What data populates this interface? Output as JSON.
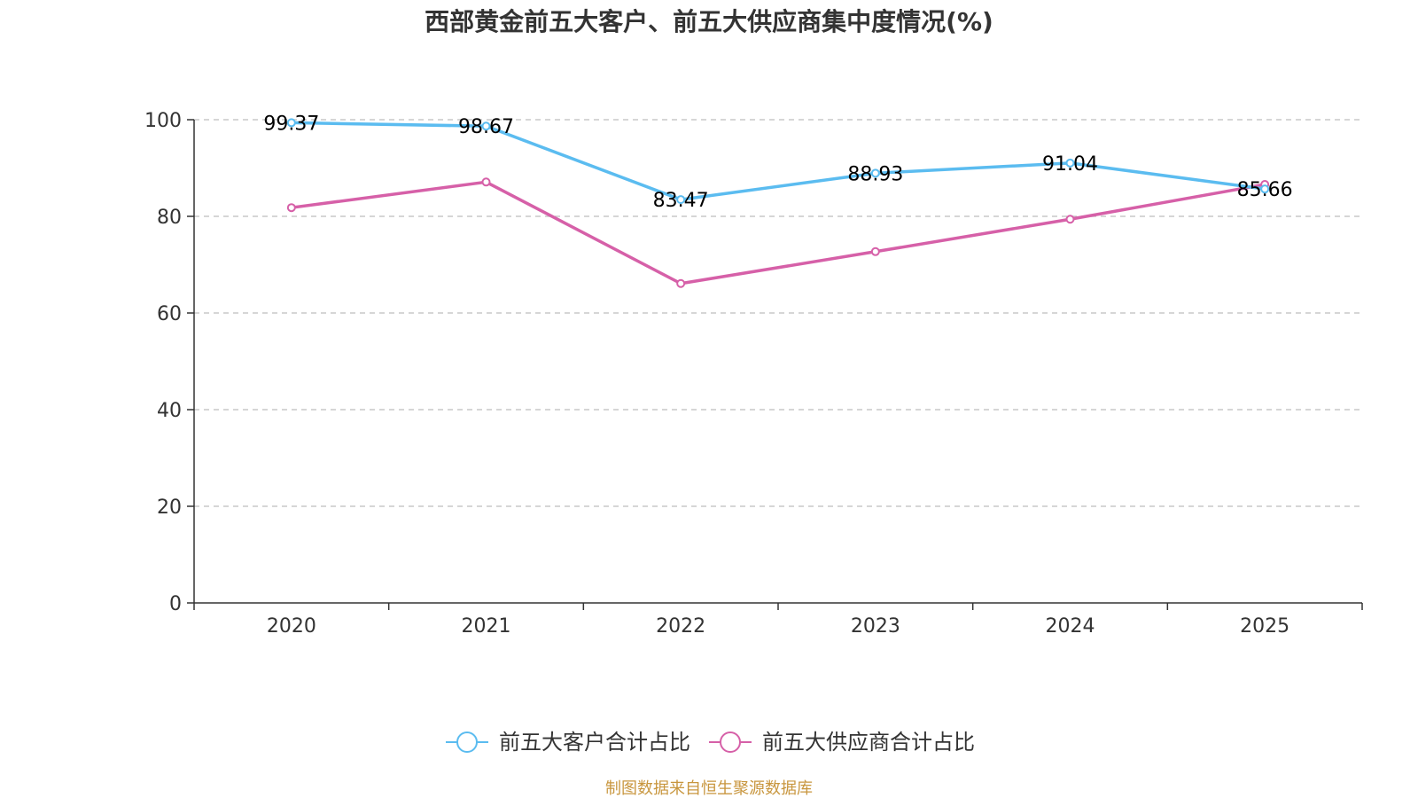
{
  "title": "西部黄金前五大客户、前五大供应商集中度情况(%)",
  "source": "制图数据来自恒生聚源数据库",
  "colors": {
    "axis": "#333333",
    "grid": "#c8c8c8",
    "source": "#c8963e"
  },
  "chart_data": {
    "type": "line",
    "title": "西部黄金前五大客户、前五大供应商集中度情况(%)",
    "xlabel": "",
    "ylabel": "",
    "categories": [
      "2020",
      "2021",
      "2022",
      "2023",
      "2024",
      "2025"
    ],
    "ylim": [
      0,
      100
    ],
    "yticks": [
      0,
      20,
      40,
      60,
      80,
      100
    ],
    "grid": true,
    "legend": "bottom-center",
    "series": [
      {
        "name": "前五大客户合计占比",
        "color": "#5bbcf0",
        "values": [
          99.37,
          98.67,
          83.47,
          88.93,
          91.04,
          85.66
        ],
        "data_labels": [
          "99.37",
          "98.67",
          "83.47",
          "88.93",
          "91.04",
          "85.66"
        ]
      },
      {
        "name": "前五大供应商合计占比",
        "color": "#d660a8",
        "values": [
          81.8,
          87.1,
          66.1,
          72.7,
          79.4,
          86.6
        ]
      }
    ]
  }
}
